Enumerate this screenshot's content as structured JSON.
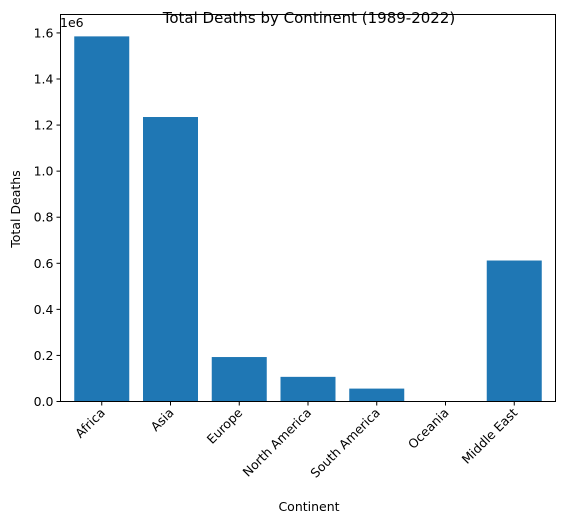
{
  "chart_data": {
    "type": "bar",
    "title": "Total Deaths by Continent (1989-2022)",
    "xlabel": "Continent",
    "ylabel": "Total Deaths",
    "offset_label": "1e6",
    "categories": [
      "Africa",
      "Asia",
      "Europe",
      "North America",
      "South America",
      "Oceania",
      "Middle East"
    ],
    "values": [
      1585000,
      1235000,
      193000,
      107000,
      56000,
      800,
      612000
    ],
    "ylim": [
      0,
      1680000
    ],
    "yticks": [
      0,
      200000,
      400000,
      600000,
      800000,
      1000000,
      1200000,
      1400000,
      1600000
    ],
    "ytick_labels": [
      "0.0",
      "0.2",
      "0.4",
      "0.6",
      "0.8",
      "1.0",
      "1.2",
      "1.4",
      "1.6"
    ],
    "bar_color": "#1f77b4",
    "grid": false,
    "legend": "none"
  }
}
